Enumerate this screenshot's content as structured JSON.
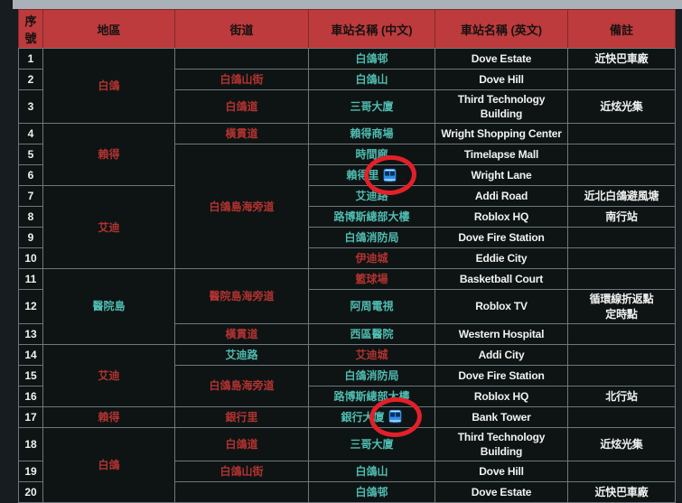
{
  "topbar": {
    "color": "#a9b1b9"
  },
  "colors": {
    "page_background": "#171c21",
    "cell_background": "#0e1413",
    "header_background": "#bd3b3c",
    "border": "#6d777e",
    "text_red": "#b23331",
    "text_teal": "#4fbcb2",
    "text_white": "#f0f2f2",
    "bus_icon_blue": "#2f8fe8",
    "annotation_circle_red": "#e2202a"
  },
  "table": {
    "columns": [
      "序號",
      "地區",
      "街道",
      "車站名稱 (中文)",
      "車站名稱 (英文)",
      "備註"
    ],
    "rows": [
      {
        "no": "1",
        "district": {
          "text": "白鴿",
          "span": 3,
          "color": "red"
        },
        "street": {
          "text": "",
          "span": 1,
          "color": "red"
        },
        "cn": {
          "text": "白鴿邨",
          "color": "teal"
        },
        "en": "Dove Estate",
        "remark": [
          "近快巴車廠"
        ]
      },
      {
        "no": "2",
        "street": {
          "text": "白鴿山街",
          "span": 1,
          "color": "red"
        },
        "cn": {
          "text": "白鴿山",
          "color": "teal"
        },
        "en": "Dove Hill",
        "remark": []
      },
      {
        "no": "3",
        "street": {
          "text": "白鴿道",
          "span": 1,
          "color": "red"
        },
        "cn": {
          "text": "三哥大廈",
          "color": "teal"
        },
        "en": "Third Technology Building",
        "remark": [
          "近炫光集"
        ]
      },
      {
        "no": "4",
        "district": {
          "text": "賴得",
          "span": 3,
          "color": "red"
        },
        "street": {
          "text": "橫貫道",
          "span": 1,
          "color": "red"
        },
        "cn": {
          "text": "賴得商場",
          "color": "teal"
        },
        "en": "Wright Shopping Center",
        "remark": []
      },
      {
        "no": "5",
        "street": {
          "text": "白鴿島海旁道",
          "span": 6,
          "color": "red"
        },
        "cn": {
          "text": "時間廊",
          "color": "teal"
        },
        "en": "Timelapse Mall",
        "remark": []
      },
      {
        "no": "6",
        "cn": {
          "text": "賴得里",
          "color": "teal",
          "bus": true,
          "circle": true
        },
        "en": "Wright Lane",
        "remark": []
      },
      {
        "no": "7",
        "district": {
          "text": "艾迪",
          "span": 4,
          "color": "red"
        },
        "cn": {
          "text": "艾迪路",
          "color": "teal"
        },
        "en": "Addi Road",
        "remark": [
          "近北白鴿避風塘"
        ]
      },
      {
        "no": "8",
        "cn": {
          "text": "路博斯總部大樓",
          "color": "teal"
        },
        "en": "Roblox HQ",
        "remark": [
          "南行站"
        ]
      },
      {
        "no": "9",
        "cn": {
          "text": "白鴿消防局",
          "color": "teal"
        },
        "en": "Dove Fire Station",
        "remark": []
      },
      {
        "no": "10",
        "cn": {
          "text": "伊迪城",
          "color": "red"
        },
        "en": "Eddie City",
        "remark": []
      },
      {
        "no": "11",
        "district": {
          "text": "醫院島",
          "span": 3,
          "color": "teal"
        },
        "street": {
          "text": "醫院島海旁道",
          "span": 2,
          "color": "red"
        },
        "cn": {
          "text": "籃球場",
          "color": "red"
        },
        "en": "Basketball Court",
        "remark": []
      },
      {
        "no": "12",
        "cn": {
          "text": "阿周電視",
          "color": "teal"
        },
        "en": "Roblox TV",
        "remark": [
          "循環線折返點",
          "定時點"
        ]
      },
      {
        "no": "13",
        "street": {
          "text": "橫貫道",
          "span": 1,
          "color": "red"
        },
        "cn": {
          "text": "西區醫院",
          "color": "teal"
        },
        "en": "Western Hospital",
        "remark": []
      },
      {
        "no": "14",
        "district": {
          "text": "艾迪",
          "span": 3,
          "color": "red"
        },
        "street": {
          "text": "艾迪路",
          "span": 1,
          "color": "teal"
        },
        "cn": {
          "text": "艾迪城",
          "color": "red"
        },
        "en": "Addi City",
        "remark": []
      },
      {
        "no": "15",
        "street": {
          "text": "白鴿島海旁道",
          "span": 2,
          "color": "red"
        },
        "cn": {
          "text": "白鴿消防局",
          "color": "teal"
        },
        "en": "Dove Fire Station",
        "remark": []
      },
      {
        "no": "16",
        "cn": {
          "text": "路博斯總部大樓",
          "color": "teal"
        },
        "en": "Roblox HQ",
        "remark": [
          "北行站"
        ]
      },
      {
        "no": "17",
        "district": {
          "text": "賴得",
          "span": 1,
          "color": "red"
        },
        "street": {
          "text": "銀行里",
          "span": 1,
          "color": "red"
        },
        "cn": {
          "text": "銀行大廈",
          "color": "teal",
          "bus": true,
          "circle": true
        },
        "en": "Bank Tower",
        "remark": []
      },
      {
        "no": "18",
        "district": {
          "text": "白鴿",
          "span": 3,
          "color": "red"
        },
        "street": {
          "text": "白鴿道",
          "span": 1,
          "color": "red"
        },
        "cn": {
          "text": "三哥大廈",
          "color": "teal"
        },
        "en": "Third Technology Building",
        "remark": [
          "近炫光集"
        ]
      },
      {
        "no": "19",
        "street": {
          "text": "白鴿山街",
          "span": 1,
          "color": "red"
        },
        "cn": {
          "text": "白鴿山",
          "color": "teal"
        },
        "en": "Dove Hill",
        "remark": []
      },
      {
        "no": "20",
        "street": {
          "text": "",
          "span": 1,
          "color": "red"
        },
        "cn": {
          "text": "白鴿邨",
          "color": "teal"
        },
        "en": "Dove Estate",
        "remark": [
          "近快巴車廠"
        ]
      }
    ]
  },
  "icons": {
    "bus": "bus-icon",
    "circle": "red-circle-annotation"
  }
}
